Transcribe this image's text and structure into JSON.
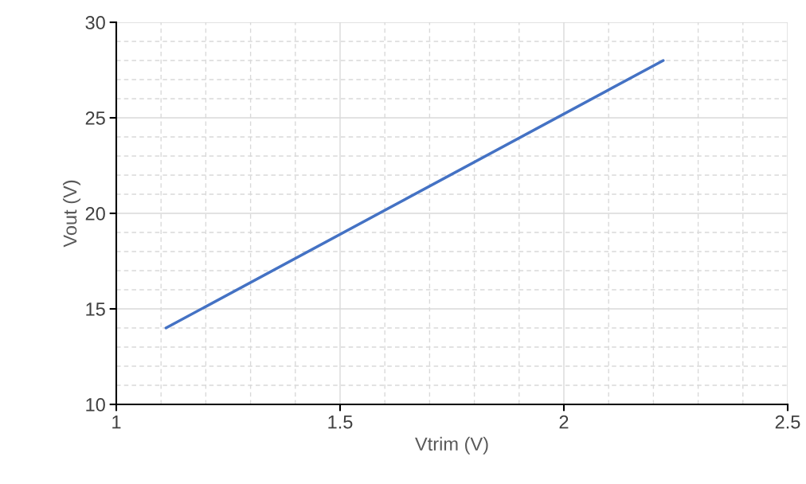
{
  "chart_data": {
    "type": "line",
    "xlabel": "Vtrim (V)",
    "ylabel": "Vout (V)",
    "x": [
      1.111,
      2.222
    ],
    "series": [
      {
        "color": "#4472c4",
        "values": [
          14,
          28
        ]
      }
    ],
    "xlim": [
      1,
      2.5
    ],
    "xticks": [
      1,
      1.5,
      2,
      2.5
    ],
    "ylim": [
      10,
      30
    ],
    "yticks": [
      10,
      15,
      20,
      25,
      30
    ],
    "grid": true,
    "marker": "none",
    "line_style": "solid"
  }
}
